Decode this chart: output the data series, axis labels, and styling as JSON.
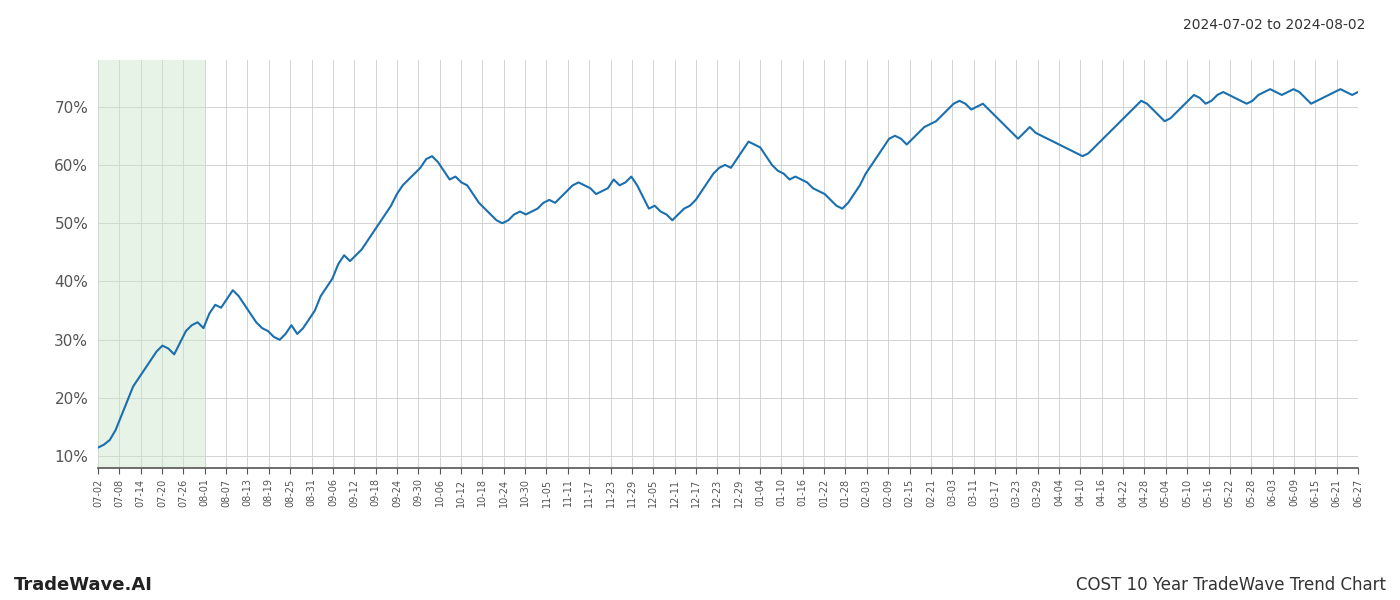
{
  "title_topright": "2024-07-02 to 2024-08-02",
  "title_bottomleft": "TradeWave.AI",
  "title_bottomright": "COST 10 Year TradeWave Trend Chart",
  "line_color": "#1a6faf",
  "line_width": 1.5,
  "shade_color": "#c8e6c9",
  "shade_alpha": 0.45,
  "background_color": "#ffffff",
  "grid_color": "#cccccc",
  "ylim": [
    8,
    78
  ],
  "yticks": [
    10,
    20,
    30,
    40,
    50,
    60,
    70
  ],
  "ytick_labels": [
    "10%",
    "20%",
    "30%",
    "40%",
    "50%",
    "60%",
    "70%"
  ],
  "x_labels": [
    "07-02",
    "07-08",
    "07-14",
    "07-20",
    "07-26",
    "08-01",
    "08-07",
    "08-13",
    "08-19",
    "08-25",
    "08-31",
    "09-06",
    "09-12",
    "09-18",
    "09-24",
    "09-30",
    "10-06",
    "10-12",
    "10-18",
    "10-24",
    "10-30",
    "11-05",
    "11-11",
    "11-17",
    "11-23",
    "11-29",
    "12-05",
    "12-11",
    "12-17",
    "12-23",
    "12-29",
    "01-04",
    "01-10",
    "01-16",
    "01-22",
    "01-28",
    "02-03",
    "02-09",
    "02-15",
    "02-21",
    "03-03",
    "03-11",
    "03-17",
    "03-23",
    "03-29",
    "04-04",
    "04-10",
    "04-16",
    "04-22",
    "04-28",
    "05-04",
    "05-10",
    "05-16",
    "05-22",
    "05-28",
    "06-03",
    "06-09",
    "06-15",
    "06-21",
    "06-27"
  ],
  "shade_start_label": "07-02",
  "shade_end_label": "08-01",
  "y_values": [
    11.5,
    12.0,
    12.8,
    14.5,
    17.0,
    19.5,
    22.0,
    23.5,
    25.0,
    26.5,
    28.0,
    29.0,
    28.5,
    27.5,
    29.5,
    31.5,
    32.5,
    33.0,
    32.0,
    34.5,
    36.0,
    35.5,
    37.0,
    38.5,
    37.5,
    36.0,
    34.5,
    33.0,
    32.0,
    31.5,
    30.5,
    30.0,
    31.0,
    32.5,
    31.0,
    32.0,
    33.5,
    35.0,
    37.5,
    39.0,
    40.5,
    43.0,
    44.5,
    43.5,
    44.5,
    45.5,
    47.0,
    48.5,
    50.0,
    51.5,
    53.0,
    55.0,
    56.5,
    57.5,
    58.5,
    59.5,
    61.0,
    61.5,
    60.5,
    59.0,
    57.5,
    58.0,
    57.0,
    56.5,
    55.0,
    53.5,
    52.5,
    51.5,
    50.5,
    50.0,
    50.5,
    51.5,
    52.0,
    51.5,
    52.0,
    52.5,
    53.5,
    54.0,
    53.5,
    54.5,
    55.5,
    56.5,
    57.0,
    56.5,
    56.0,
    55.0,
    55.5,
    56.0,
    57.5,
    56.5,
    57.0,
    58.0,
    56.5,
    54.5,
    52.5,
    53.0,
    52.0,
    51.5,
    50.5,
    51.5,
    52.5,
    53.0,
    54.0,
    55.5,
    57.0,
    58.5,
    59.5,
    60.0,
    59.5,
    61.0,
    62.5,
    64.0,
    63.5,
    63.0,
    61.5,
    60.0,
    59.0,
    58.5,
    57.5,
    58.0,
    57.5,
    57.0,
    56.0,
    55.5,
    55.0,
    54.0,
    53.0,
    52.5,
    53.5,
    55.0,
    56.5,
    58.5,
    60.0,
    61.5,
    63.0,
    64.5,
    65.0,
    64.5,
    63.5,
    64.5,
    65.5,
    66.5,
    67.0,
    67.5,
    68.5,
    69.5,
    70.5,
    71.0,
    70.5,
    69.5,
    70.0,
    70.5,
    69.5,
    68.5,
    67.5,
    66.5,
    65.5,
    64.5,
    65.5,
    66.5,
    65.5,
    65.0,
    64.5,
    64.0,
    63.5,
    63.0,
    62.5,
    62.0,
    61.5,
    62.0,
    63.0,
    64.0,
    65.0,
    66.0,
    67.0,
    68.0,
    69.0,
    70.0,
    71.0,
    70.5,
    69.5,
    68.5,
    67.5,
    68.0,
    69.0,
    70.0,
    71.0,
    72.0,
    71.5,
    70.5,
    71.0,
    72.0,
    72.5,
    72.0,
    71.5,
    71.0,
    70.5,
    71.0,
    72.0,
    72.5,
    73.0,
    72.5,
    72.0,
    72.5,
    73.0,
    72.5,
    71.5,
    70.5,
    71.0,
    71.5,
    72.0,
    72.5,
    73.0,
    72.5,
    72.0,
    72.5
  ]
}
